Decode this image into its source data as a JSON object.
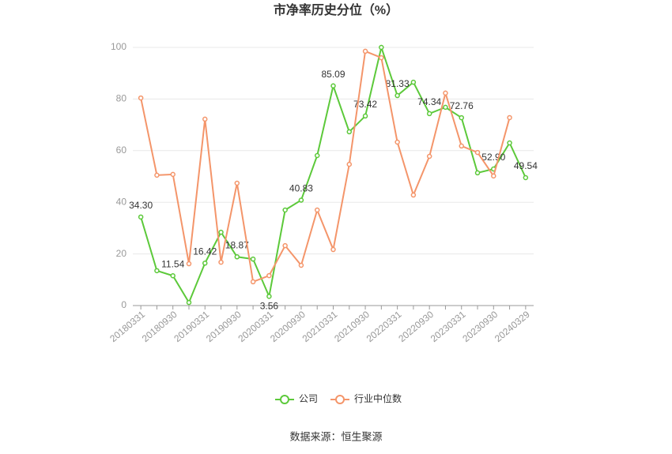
{
  "chart_data": {
    "type": "line",
    "title": "市净率历史分位（%）",
    "source": "数据来源：恒生聚源",
    "categories": [
      "20180331",
      null,
      "20180930",
      null,
      "20190331",
      null,
      "20190930",
      null,
      "20200331",
      null,
      "20200930",
      null,
      "20210331",
      null,
      "20210930",
      null,
      "20220331",
      null,
      "20220930",
      null,
      "20230331",
      null,
      "20230930",
      null,
      "20240329"
    ],
    "series": [
      {
        "name": "公司",
        "color": "#5cc93a",
        "values": [
          34.3,
          13.5,
          11.54,
          1.2,
          16.42,
          28.4,
          18.87,
          18.0,
          3.56,
          37.0,
          40.83,
          58.1,
          85.09,
          67.3,
          73.42,
          100,
          81.33,
          86.5,
          74.34,
          76.8,
          72.76,
          51.4,
          52.9,
          63.0,
          49.54
        ],
        "value_labels": [
          "34.30",
          null,
          "11.54",
          null,
          "16.42",
          null,
          "18.87",
          null,
          "3.56",
          null,
          "40.83",
          null,
          "85.09",
          null,
          "73.42",
          null,
          "81.33",
          null,
          "74.34",
          null,
          "72.76",
          null,
          "52.90",
          null,
          "49.54"
        ]
      },
      {
        "name": "行业中位数",
        "color": "#f4956a",
        "values": [
          80.4,
          50.5,
          50.8,
          16.2,
          72.2,
          16.8,
          47.4,
          9.2,
          11.6,
          23.2,
          15.6,
          37.0,
          21.7,
          54.7,
          98.5,
          96.0,
          63.3,
          42.8,
          57.8,
          82.3,
          61.8,
          59.3,
          50.2,
          72.8,
          null
        ]
      }
    ],
    "ylim": [
      0,
      100
    ],
    "yticks": [
      0,
      20,
      40,
      60,
      80,
      100
    ],
    "grid": true,
    "legend": "bottom"
  }
}
